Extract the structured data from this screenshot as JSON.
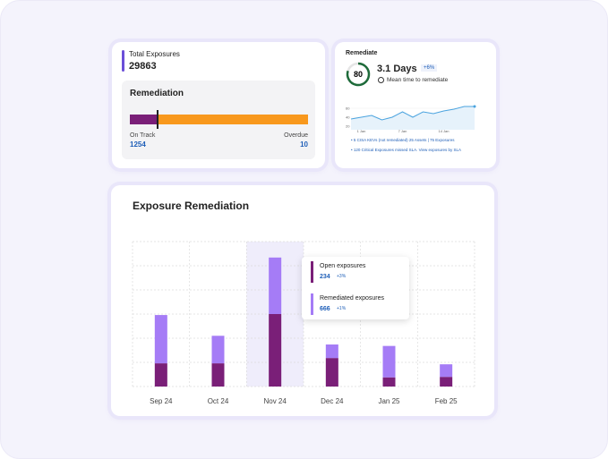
{
  "total_exposures": {
    "label": "Total Exposures",
    "value": 29863
  },
  "remediation": {
    "title": "Remediation",
    "on_track": {
      "label": "On Track",
      "value": 1254
    },
    "overdue": {
      "label": "Overdue",
      "value": 10
    }
  },
  "remediate": {
    "title": "Remediate",
    "score": 80,
    "days": "3.1 Days",
    "change": "+6%",
    "caption": "Mean time to remediate",
    "sparkline": {
      "type": "line",
      "categories": [
        null,
        "1 Jan",
        null,
        null,
        null,
        "7 Jan",
        null,
        null,
        null,
        "14 Jan",
        null,
        null,
        null
      ],
      "values": [
        36,
        40,
        44,
        34,
        40,
        52,
        40,
        52,
        48,
        54,
        58,
        64,
        64
      ],
      "color": "#4aa3df",
      "ylim": [
        0,
        80
      ],
      "yticks": [
        20,
        40,
        60
      ]
    },
    "notes": [
      "5 CISA KEVs (not remediated) 25 Assets | 75 Exposures",
      "120 Critical Exposures missed SLA. View exposures by SLA"
    ]
  },
  "exposure_chart": {
    "type": "bar",
    "title": "Exposure Remediation",
    "categories": [
      "Sep 24",
      "Oct 24",
      "Nov 24",
      "Dec 24",
      "Jan 25",
      "Feb 25"
    ],
    "series": [
      {
        "name": "Open exposures",
        "color": "#7a1f78",
        "values": [
          48,
          48,
          150,
          59,
          19,
          20
        ]
      },
      {
        "name": "Remediated exposures",
        "color": "#a57cf6",
        "values": [
          100,
          57,
          117,
          28,
          65,
          26
        ]
      }
    ],
    "ylim": [
      0,
      300
    ],
    "yticks": [
      0,
      50,
      100,
      150,
      200,
      250,
      300
    ],
    "grid": true,
    "highlight": "Nov 24",
    "tooltip": [
      {
        "value": 234,
        "change": "+3%"
      },
      {
        "value": 666,
        "change": "+1%"
      }
    ]
  }
}
